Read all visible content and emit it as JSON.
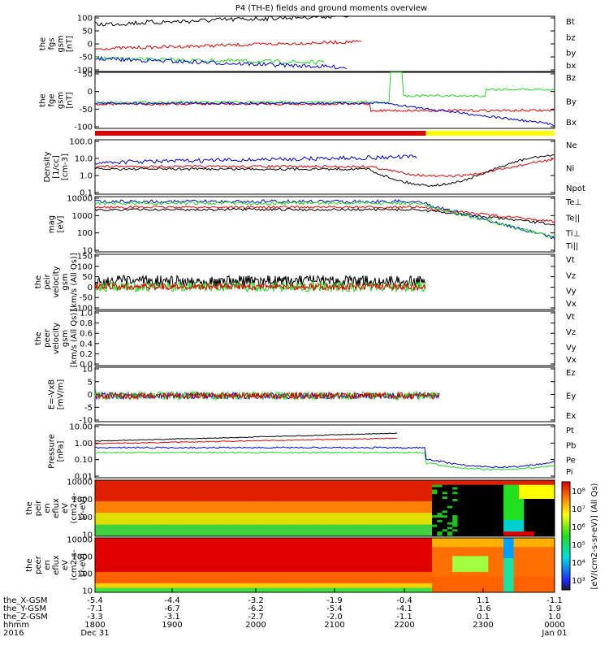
{
  "title": "P4 (TH-E) fields and ground moments overview",
  "colors": {
    "black": "#000000",
    "red": "#e00000",
    "green": "#22dd22",
    "blue": "#0000dd",
    "yellow": "#ffff00"
  },
  "chart_data": [
    {
      "type": "line",
      "ylabel": [
        "the",
        "fgs",
        "gsm",
        "[nT]"
      ],
      "yticks": [
        "100",
        "50",
        "0",
        "-50",
        "-100"
      ],
      "ylim": [
        -100,
        100
      ],
      "series": [
        {
          "name": "Bt",
          "color": "black"
        },
        {
          "name": "bz",
          "color": "red"
        },
        {
          "name": "by",
          "color": "green"
        },
        {
          "name": "bx",
          "color": "blue"
        }
      ]
    },
    {
      "type": "line",
      "ylabel": [
        "the",
        "fge",
        "gsm",
        "[nT]"
      ],
      "yticks": [
        "50",
        "0",
        "-50",
        "-100"
      ],
      "ylim": [
        -120,
        100
      ],
      "series": [
        {
          "name": "Bz",
          "color": "red"
        },
        {
          "name": "By",
          "color": "green"
        },
        {
          "name": "Bx",
          "color": "blue"
        }
      ]
    },
    {
      "type": "line",
      "ylabel": [
        "Density",
        "[1/cc]",
        "[cm-3]"
      ],
      "yticks": [
        "100.0",
        "10.0",
        "1.0",
        "0.1"
      ],
      "log": true,
      "series": [
        {
          "name": "Ne",
          "color": "red"
        },
        {
          "name": "Ni",
          "color": "black"
        },
        {
          "name": "Npot",
          "color": "blue"
        }
      ]
    },
    {
      "type": "line",
      "ylabel": [
        "mag",
        "[eV]"
      ],
      "yticks": [
        "10000",
        "1000",
        "100",
        "10"
      ],
      "log": true,
      "series": [
        {
          "name": "Te⊥",
          "color": "red"
        },
        {
          "name": "Te||",
          "color": "black"
        },
        {
          "name": "Ti⊥",
          "color": "blue"
        },
        {
          "name": "Ti||",
          "color": "green"
        }
      ]
    },
    {
      "type": "line",
      "ylabel": [
        "the",
        "peir",
        "velocity",
        "gsm",
        "[km/s (All Qs)]"
      ],
      "yticks": [
        "150",
        "100",
        "50",
        "0",
        "-50",
        "-100"
      ],
      "ylim": [
        -100,
        150
      ],
      "series": [
        {
          "name": "Vt",
          "color": "black"
        },
        {
          "name": "Vz",
          "color": "red"
        },
        {
          "name": "Vy",
          "color": "green"
        },
        {
          "name": "Vx",
          "color": "blue"
        }
      ]
    },
    {
      "type": "line",
      "ylabel": [
        "the",
        "peer",
        "velocity",
        "gsm",
        "[km/s (All Qs)]"
      ],
      "yticks": [
        "1.0",
        "0.8",
        "0.6",
        "0.4",
        "0.2",
        "0.0"
      ],
      "ylim": [
        0,
        1
      ],
      "series": [
        {
          "name": "Vt",
          "color": "black"
        },
        {
          "name": "Vz",
          "color": "red"
        },
        {
          "name": "Vy",
          "color": "green"
        },
        {
          "name": "Vx",
          "color": "blue"
        }
      ]
    },
    {
      "type": "line",
      "ylabel": [
        "E=-VxB",
        "[mV/m]"
      ],
      "yticks": [
        "10",
        "5",
        "0",
        "-5",
        "-10"
      ],
      "ylim": [
        -10,
        10
      ],
      "series": [
        {
          "name": "Ez",
          "color": "red"
        },
        {
          "name": "Ey",
          "color": "green"
        },
        {
          "name": "Ex",
          "color": "blue"
        }
      ]
    },
    {
      "type": "line",
      "ylabel": [
        "Pressure",
        "[nPa]"
      ],
      "yticks": [
        "10.00",
        "1.00",
        "0.10",
        "0.01"
      ],
      "log": true,
      "series": [
        {
          "name": "Pt",
          "color": "black"
        },
        {
          "name": "Pb",
          "color": "red"
        },
        {
          "name": "Pe",
          "color": "green"
        },
        {
          "name": "Pi",
          "color": "blue"
        }
      ]
    },
    {
      "type": "heatmap",
      "ylabel": [
        "the",
        "peir",
        "en",
        "eflux",
        "eV",
        "(cm2-s-",
        "sr-eV)"
      ],
      "yticks": [
        "10000",
        "1000",
        "100",
        "10"
      ]
    },
    {
      "type": "heatmap",
      "ylabel": [
        "the",
        "peer",
        "en",
        "eflux",
        "eV",
        "(cm2-s-",
        "sr-eV)"
      ],
      "yticks": [
        "10000",
        "1000",
        "100",
        "10"
      ]
    }
  ],
  "colorbar": {
    "label": "[eV/(cm2-s-sr-eV)] (All Qs)",
    "ticks": [
      "10⁸",
      "10⁷",
      "10⁶",
      "10⁵",
      "10⁴",
      "10³"
    ]
  },
  "xaxis": {
    "rows": [
      {
        "label": "the_X-GSM",
        "values": [
          "-5.4",
          "-4.4",
          "-3.2",
          "-1.9",
          "-0.4",
          "1.1",
          "-1.1"
        ]
      },
      {
        "label": "the_Y-GSM",
        "values": [
          "-7.1",
          "-6.7",
          "-6.2",
          "-5.4",
          "-4.1",
          "-1.6",
          "1.9"
        ]
      },
      {
        "label": "the_Z-GSM",
        "values": [
          "-3.3",
          "-3.1",
          "-2.7",
          "-2.0",
          "-1.1",
          "0.1",
          "1.0"
        ]
      },
      {
        "label": "hhmm",
        "values": [
          "1800",
          "1900",
          "2000",
          "2100",
          "2200",
          "2300",
          "0000"
        ]
      },
      {
        "label": "2016",
        "values": [
          "Dec 31",
          "",
          "",
          "",
          "",
          "",
          "Jan 01"
        ]
      }
    ]
  }
}
